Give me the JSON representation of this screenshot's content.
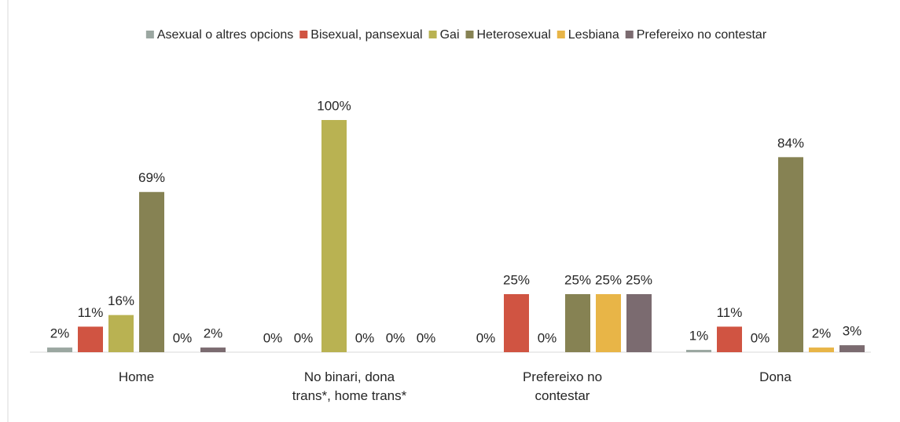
{
  "chart_data": {
    "type": "bar",
    "categories": [
      "Home",
      "No binari, dona trans*, home trans*",
      "Prefereixo no contestar",
      "Dona"
    ],
    "series": [
      {
        "name": "Asexual o altres opcions",
        "color": "#9ba7a1",
        "values": [
          2,
          0,
          0,
          1
        ],
        "value_labels": [
          "2%",
          "0%",
          "0%",
          "1%"
        ]
      },
      {
        "name": "Bisexual, pansexual",
        "color": "#d05442",
        "values": [
          11,
          0,
          25,
          11
        ],
        "value_labels": [
          "11%",
          "0%",
          "25%",
          "11%"
        ]
      },
      {
        "name": "Gai",
        "color": "#b9b252",
        "values": [
          16,
          100,
          0,
          0
        ],
        "value_labels": [
          "16%",
          "100%",
          "0%",
          "0%"
        ]
      },
      {
        "name": "Heterosexual",
        "color": "#868253",
        "values": [
          69,
          0,
          25,
          84
        ],
        "value_labels": [
          "69%",
          "0%",
          "25%",
          "84%"
        ]
      },
      {
        "name": "Lesbiana",
        "color": "#e8b547",
        "values": [
          0,
          0,
          25,
          2
        ],
        "value_labels": [
          "0%",
          "0%",
          "25%",
          "2%"
        ]
      },
      {
        "name": "Prefereixo no contestar",
        "color": "#7b6b70",
        "values": [
          2,
          0,
          25,
          3
        ],
        "value_labels": [
          "2%",
          "0%",
          "25%",
          "3%"
        ]
      }
    ],
    "ylim": [
      0,
      100
    ]
  }
}
